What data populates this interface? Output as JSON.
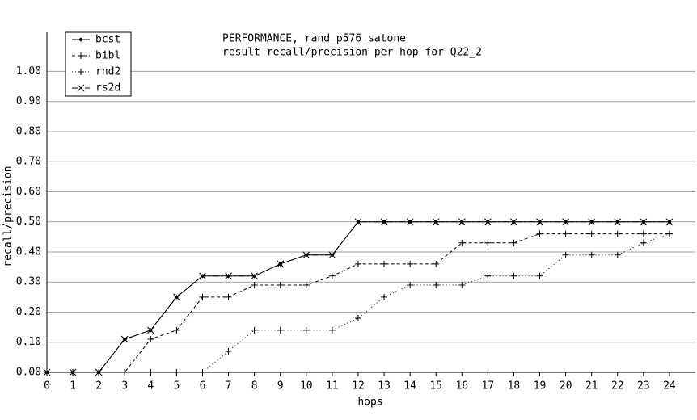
{
  "chart_data": {
    "type": "line",
    "title": "PERFORMANCE, rand_p576_satone",
    "subtitle": "result recall/precision per hop for Q22_2",
    "x_label": "hops",
    "y_label": "recall/precision",
    "x": [
      0,
      1,
      2,
      3,
      4,
      5,
      6,
      7,
      8,
      9,
      10,
      11,
      12,
      13,
      14,
      15,
      16,
      17,
      18,
      19,
      20,
      21,
      22,
      23,
      24
    ],
    "xlim": [
      0,
      25
    ],
    "xticks": [
      0,
      1,
      2,
      3,
      4,
      5,
      6,
      7,
      8,
      9,
      10,
      11,
      12,
      13,
      14,
      15,
      16,
      17,
      18,
      19,
      20,
      21,
      22,
      23,
      24
    ],
    "ylim": [
      0,
      1.13
    ],
    "yticks": [
      {
        "value": 0,
        "label": "0.00"
      },
      {
        "value": 0.1,
        "label": "0.10"
      },
      {
        "value": 0.2,
        "label": "0.20"
      },
      {
        "value": 0.3,
        "label": "0.30"
      },
      {
        "value": 0.4,
        "label": "0.40"
      },
      {
        "value": 0.5,
        "label": "0.50"
      },
      {
        "value": 0.6,
        "label": "0.60"
      },
      {
        "value": 0.7,
        "label": "0.70"
      },
      {
        "value": 0.8,
        "label": "0.80"
      },
      {
        "value": 0.9,
        "label": "0.90"
      },
      {
        "value": 1,
        "label": "1.00"
      }
    ],
    "grid": true,
    "legend": "top-left",
    "series": [
      {
        "name": "bcst",
        "color": "#000000",
        "line_style": "solid",
        "marker": "dot",
        "values": [
          0,
          0,
          0,
          0.11,
          0.14,
          0.25,
          0.32,
          0.32,
          0.32,
          0.36,
          0.39,
          0.39,
          0.5,
          0.5,
          0.5,
          0.5,
          0.5,
          0.5,
          0.5,
          0.5,
          0.5,
          0.5,
          0.5,
          0.5,
          0.5
        ]
      },
      {
        "name": "bibl",
        "color": "#000000",
        "line_style": "dashed",
        "marker": "plus",
        "values": [
          0,
          0,
          0,
          0,
          0.11,
          0.14,
          0.25,
          0.25,
          0.29,
          0.29,
          0.29,
          0.32,
          0.36,
          0.36,
          0.36,
          0.36,
          0.43,
          0.43,
          0.43,
          0.46,
          0.46,
          0.46,
          0.46,
          0.46,
          0.46
        ]
      },
      {
        "name": "rnd2",
        "color": "#000000",
        "line_style": "dotted",
        "marker": "plus",
        "values": [
          0,
          0,
          0,
          0,
          0,
          0,
          0,
          0.07,
          0.14,
          0.14,
          0.14,
          0.14,
          0.18,
          0.25,
          0.29,
          0.29,
          0.29,
          0.32,
          0.32,
          0.32,
          0.39,
          0.39,
          0.39,
          0.43,
          0.46
        ]
      },
      {
        "name": "rs2d",
        "color": "#000000",
        "line_style": "dashdot",
        "marker": "cross",
        "values": [
          0,
          0,
          0,
          0.11,
          0.14,
          0.25,
          0.32,
          0.32,
          0.32,
          0.36,
          0.39,
          0.39,
          0.5,
          0.5,
          0.5,
          0.5,
          0.5,
          0.5,
          0.5,
          0.5,
          0.5,
          0.5,
          0.5,
          0.5,
          0.5
        ]
      }
    ]
  }
}
